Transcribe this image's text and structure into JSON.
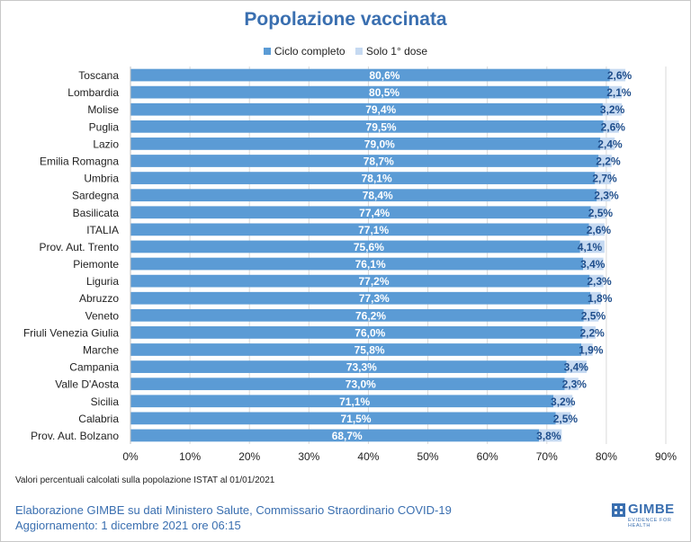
{
  "colors": {
    "complete": "#5b9bd5",
    "first_dose": "#c5d9f1",
    "title": "#3a6fb0",
    "grid": "#d9d9d9"
  },
  "chart_data": {
    "type": "bar",
    "orientation": "horizontal",
    "stacked": true,
    "title": "Popolazione vaccinata",
    "categories": [
      "Toscana",
      "Lombardia",
      "Molise",
      "Puglia",
      "Lazio",
      "Emilia Romagna",
      "Umbria",
      "Sardegna",
      "Basilicata",
      "ITALIA",
      "Prov. Aut. Trento",
      "Piemonte",
      "Liguria",
      "Abruzzo",
      "Veneto",
      "Friuli Venezia Giulia",
      "Marche",
      "Campania",
      "Valle D'Aosta",
      "Sicilia",
      "Calabria",
      "Prov. Aut. Bolzano"
    ],
    "series": [
      {
        "name": "Ciclo completo",
        "values": [
          80.6,
          80.5,
          79.4,
          79.5,
          79.0,
          78.7,
          78.1,
          78.4,
          77.4,
          77.1,
          75.6,
          76.1,
          77.2,
          77.3,
          76.2,
          76.0,
          75.8,
          73.3,
          73.0,
          71.1,
          71.5,
          68.7
        ],
        "labels": [
          "80,6%",
          "80,5%",
          "79,4%",
          "79,5%",
          "79,0%",
          "78,7%",
          "78,1%",
          "78,4%",
          "77,4%",
          "77,1%",
          "75,6%",
          "76,1%",
          "77,2%",
          "77,3%",
          "76,2%",
          "76,0%",
          "75,8%",
          "73,3%",
          "73,0%",
          "71,1%",
          "71,5%",
          "68,7%"
        ]
      },
      {
        "name": "Solo 1° dose",
        "values": [
          2.6,
          2.1,
          3.2,
          2.6,
          2.4,
          2.2,
          2.7,
          2.3,
          2.5,
          2.6,
          4.1,
          3.4,
          2.3,
          1.8,
          2.5,
          2.2,
          1.9,
          3.4,
          2.3,
          3.2,
          2.5,
          3.8
        ],
        "labels": [
          "2,6%",
          "2,1%",
          "3,2%",
          "2,6%",
          "2,4%",
          "2,2%",
          "2,7%",
          "2,3%",
          "2,5%",
          "2,6%",
          "4,1%",
          "3,4%",
          "2,3%",
          "1,8%",
          "2,5%",
          "2,2%",
          "1,9%",
          "3,4%",
          "2,3%",
          "3,2%",
          "2,5%",
          "3,8%"
        ]
      }
    ],
    "xlim": [
      0,
      90
    ],
    "xticks": [
      0,
      10,
      20,
      30,
      40,
      50,
      60,
      70,
      80,
      90
    ],
    "xtick_labels": [
      "0%",
      "10%",
      "20%",
      "30%",
      "40%",
      "50%",
      "60%",
      "70%",
      "80%",
      "90%"
    ],
    "grid": true,
    "legend": "top"
  },
  "footer": {
    "note": "Valori percentuali calcolati sulla popolazione ISTAT al 01/01/2021",
    "credit_line1": "Elaborazione GIMBE su dati Ministero Salute, Commissario Straordinario COVID-19",
    "credit_line2": "Aggiornamento: 1 dicembre 2021 ore 06:15",
    "logo_name": "GIMBE",
    "logo_tagline": "EVIDENCE FOR HEALTH"
  }
}
